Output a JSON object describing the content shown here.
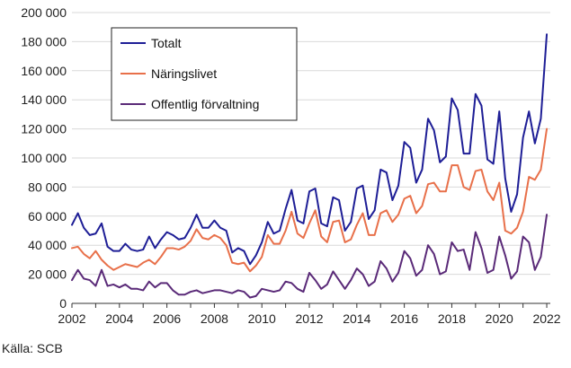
{
  "source": "Källa: SCB",
  "chart_data": {
    "type": "line",
    "title": "",
    "xlabel": "",
    "ylabel": "",
    "xlim": [
      2002,
      2022.15
    ],
    "ylim": [
      0,
      200000
    ],
    "x_ticks": [
      "2002",
      "2004",
      "2006",
      "2008",
      "2010",
      "2012",
      "2014",
      "2016",
      "2018",
      "2020",
      "2022"
    ],
    "y_ticks": [
      "0",
      "20 000",
      "40 000",
      "60 000",
      "80 000",
      "100 000",
      "120 000",
      "140 000",
      "160 000",
      "180 000",
      "200 000"
    ],
    "grid": "horizontal",
    "legend": "top-left",
    "x_start": 2002,
    "x_step": 0.25,
    "series": [
      {
        "name": "Totalt",
        "color": "#1e1e96",
        "values": [
          54000,
          62000,
          52000,
          47000,
          48000,
          55000,
          39000,
          36000,
          36000,
          41000,
          37000,
          36000,
          37000,
          46000,
          38000,
          44000,
          49000,
          47000,
          44000,
          45000,
          52000,
          61000,
          52000,
          52000,
          57000,
          52000,
          50000,
          35000,
          38000,
          36000,
          27000,
          33000,
          42000,
          56000,
          48000,
          50000,
          65000,
          78000,
          57000,
          55000,
          77000,
          79000,
          55000,
          53000,
          73000,
          71000,
          50000,
          56000,
          79000,
          81000,
          58000,
          64000,
          92000,
          90000,
          71000,
          81000,
          111000,
          107000,
          83000,
          92000,
          127000,
          119000,
          97000,
          101000,
          141000,
          133000,
          103000,
          103000,
          144000,
          136000,
          99000,
          96000,
          132000,
          86000,
          63000,
          75000,
          114000,
          132000,
          110000,
          127000,
          185000
        ]
      },
      {
        "name": "Näringslivet",
        "color": "#e8704a",
        "values": [
          38000,
          39000,
          34000,
          31000,
          36000,
          30000,
          26000,
          23000,
          25000,
          27000,
          26000,
          25000,
          28000,
          30000,
          27000,
          32000,
          38000,
          38000,
          37000,
          39000,
          43000,
          51000,
          45000,
          44000,
          47000,
          45000,
          40000,
          28000,
          27000,
          28000,
          22000,
          26000,
          32000,
          47000,
          41000,
          41000,
          50000,
          63000,
          48000,
          45000,
          55000,
          64000,
          46000,
          42000,
          56000,
          57000,
          42000,
          44000,
          54000,
          62000,
          47000,
          47000,
          62000,
          64000,
          56000,
          61000,
          72000,
          74000,
          62000,
          67000,
          82000,
          83000,
          77000,
          77000,
          95000,
          95000,
          80000,
          78000,
          91000,
          92000,
          77000,
          71000,
          83000,
          50000,
          48000,
          52000,
          63000,
          87000,
          85000,
          92000,
          120000
        ]
      },
      {
        "name": "Offentlig förvaltning",
        "color": "#5a2a78",
        "values": [
          16000,
          23000,
          17000,
          16000,
          12000,
          23000,
          12000,
          13000,
          11000,
          13000,
          10000,
          10000,
          9000,
          15000,
          11000,
          14000,
          14000,
          9000,
          6000,
          6000,
          8000,
          9000,
          7000,
          8000,
          9000,
          9000,
          8000,
          7000,
          9000,
          8000,
          4000,
          5000,
          10000,
          9000,
          8000,
          9000,
          15000,
          14000,
          10000,
          8000,
          21000,
          16000,
          10000,
          13000,
          22000,
          16000,
          10000,
          16000,
          24000,
          20000,
          12000,
          15000,
          29000,
          24000,
          15000,
          21000,
          36000,
          31000,
          19000,
          23000,
          40000,
          34000,
          20000,
          22000,
          42000,
          36000,
          37000,
          23000,
          49000,
          38000,
          21000,
          23000,
          46000,
          33000,
          17000,
          22000,
          46000,
          42000,
          23000,
          32000,
          61000
        ]
      }
    ]
  }
}
